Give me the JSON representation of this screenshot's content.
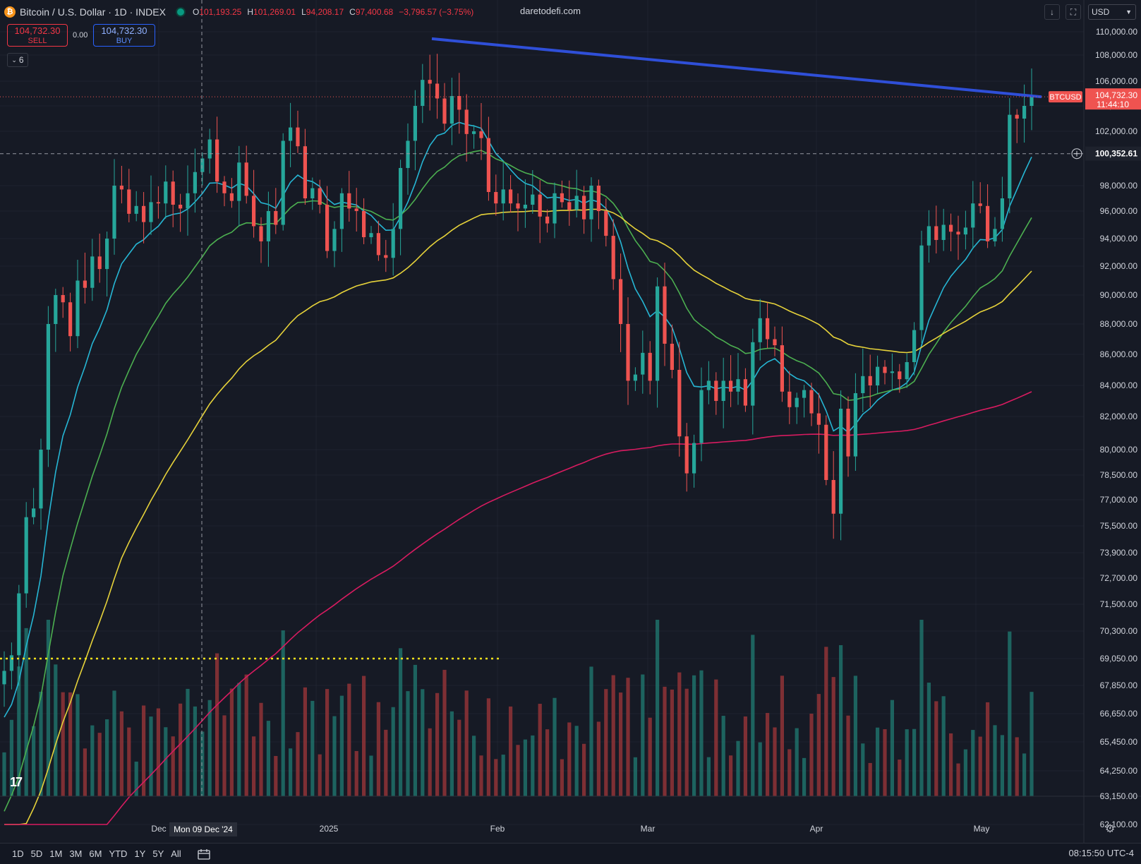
{
  "header": {
    "logo_char": "₿",
    "title": "Bitcoin / U.S. Dollar · 1D · INDEX",
    "ohlc": [
      {
        "k": "O",
        "v": "101,193.25"
      },
      {
        "k": "H",
        "v": "101,269.01"
      },
      {
        "k": "L",
        "v": "94,208.17"
      },
      {
        "k": "C",
        "v": "97,400.68"
      },
      {
        "k": "",
        "v": "−3,796.57 (−3.75%)"
      }
    ],
    "watermark": "daretodefi.com"
  },
  "trade": {
    "sell_price": "104,732.30",
    "sell_label": "SELL",
    "spread": "0.00",
    "buy_price": "104,732.30",
    "buy_label": "BUY",
    "indicator_count": "6"
  },
  "toolbar": {
    "currency": "USD",
    "download_icon": "↓",
    "fullscreen_icon": "⛶"
  },
  "price_axis": {
    "ticks": [
      "110,000.00",
      "108,000.00",
      "106,000.00",
      "104,000.00",
      "102,000.00",
      "98,000.00",
      "96,000.00",
      "94,000.00",
      "92,000.00",
      "90,000.00",
      "88,000.00",
      "86,000.00",
      "84,000.00",
      "82,000.00",
      "80,000.00",
      "78,500.00",
      "77,000.00",
      "75,500.00",
      "73,900.00",
      "72,700.00",
      "71,500.00",
      "70,300.00",
      "69,050.00",
      "67,850.00",
      "66,650.00",
      "65,450.00",
      "64,250.00",
      "63,150.00",
      "62,100.00"
    ],
    "crosshair_price": "100,352.61",
    "last_price": "104,732.30",
    "countdown": "11:44:10",
    "symbol_tag": "BTCUSD"
  },
  "time_axis": {
    "labels": [
      "Dec",
      "2025",
      "Feb",
      "Mar",
      "Apr",
      "May"
    ],
    "crosshair_date": "Mon 09 Dec '24"
  },
  "ranges": [
    "1D",
    "5D",
    "1M",
    "3M",
    "6M",
    "YTD",
    "1Y",
    "5Y",
    "All"
  ],
  "clock": "08:15:50 UTC-4",
  "colors": {
    "up": "#26a69a",
    "down": "#ef5350",
    "ema_fast": "#26b6d4",
    "ema_mid": "#4caf50",
    "ema_slow": "#e6d23a",
    "ema_long": "#d81b60",
    "trendline": "#2f4fd8"
  },
  "chart_data": {
    "type": "candlestick",
    "symbol": "BTCUSD",
    "interval": "1D",
    "series": [
      {
        "type": "candles",
        "approx_closes": [
          68500,
          69200,
          72000,
          76000,
          76500,
          80000,
          88000,
          90000,
          89500,
          87200,
          91000,
          90500,
          92700,
          91800,
          94000,
          98000,
          97700,
          95800,
          96400,
          95200,
          96700,
          96600,
          98300,
          96500,
          96200,
          97400,
          99000,
          100000,
          101400,
          98300,
          97400,
          96800,
          99700,
          97200,
          94900,
          93800,
          96000,
          95000,
          101300,
          102300,
          100900,
          97000,
          97800,
          96500,
          93100,
          94700,
          97400,
          96200,
          96000,
          94100,
          94400,
          92800,
          92600,
          94700,
          99300,
          101300,
          104000,
          106100,
          105800,
          104600,
          102600,
          104800,
          103700,
          101800,
          102000,
          101500,
          97500,
          96600,
          97700,
          96600,
          96200,
          96500,
          97300,
          95600,
          95100,
          97400,
          96700,
          96100,
          97200,
          95400,
          98000,
          96000,
          94200,
          91100,
          88000,
          84300,
          84700,
          86100,
          84300,
          90600,
          86700,
          85000,
          80800,
          78600,
          80400,
          83700,
          84300,
          83000,
          84300,
          83600,
          84400,
          82700,
          86800,
          88400,
          87000,
          86600,
          83600,
          82600,
          83200,
          83700,
          82200,
          81500,
          78200,
          76200,
          82500,
          79600,
          83500,
          84600,
          84000,
          85200,
          84800,
          84900,
          84400,
          85500,
          87600,
          93500,
          94900,
          93900,
          95000,
          94500,
          94300,
          94800,
          96600,
          96400,
          93800,
          94700,
          97000,
          103300,
          103000,
          104000,
          104732
        ]
      },
      {
        "name": "EMA 9",
        "color": "#26b6d4"
      },
      {
        "name": "EMA 21",
        "color": "#4caf50"
      },
      {
        "name": "EMA 50",
        "color": "#e6d23a"
      },
      {
        "name": "EMA 200",
        "color": "#d81b60"
      }
    ],
    "price_range": [
      61500,
      111000
    ],
    "last_price": 104732.3,
    "horizontal_level": 69050,
    "trendline": {
      "from_price": 109400,
      "to_price": 104732
    }
  }
}
